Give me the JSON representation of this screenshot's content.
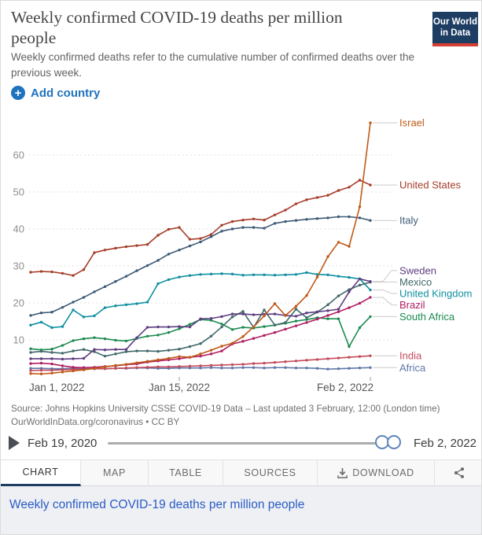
{
  "header": {
    "title": "Weekly confirmed COVID-19 deaths per million people",
    "subtitle": "Weekly confirmed deaths refer to the cumulative number of confirmed deaths over the previous week.",
    "logo": {
      "line1": "Our World",
      "line2": "in Data"
    },
    "add_country_label": "Add country"
  },
  "chart_data": {
    "type": "line",
    "title": "Weekly confirmed COVID-19 deaths per million people",
    "xlabel": "",
    "ylabel": "",
    "ylim": [
      0,
      70
    ],
    "y_ticks": [
      10,
      20,
      30,
      40,
      50,
      60
    ],
    "grid": "horizontal-dashed",
    "legend_position": "right-end-labels",
    "x": [
      "Jan 1",
      "Jan 2",
      "Jan 3",
      "Jan 4",
      "Jan 5",
      "Jan 6",
      "Jan 7",
      "Jan 8",
      "Jan 9",
      "Jan 10",
      "Jan 11",
      "Jan 12",
      "Jan 13",
      "Jan 14",
      "Jan 15",
      "Jan 16",
      "Jan 17",
      "Jan 18",
      "Jan 19",
      "Jan 20",
      "Jan 21",
      "Jan 22",
      "Jan 23",
      "Jan 24",
      "Jan 25",
      "Jan 26",
      "Jan 27",
      "Jan 28",
      "Jan 29",
      "Jan 30",
      "Jan 31",
      "Feb 1",
      "Feb 2"
    ],
    "x_tick_labels": [
      "Jan 1, 2022",
      "Jan 15, 2022",
      "Feb 2, 2022"
    ],
    "series": [
      {
        "name": "Africa",
        "color": "#6077A8",
        "values": [
          2.3,
          2.3,
          2.2,
          2.2,
          2.3,
          2.3,
          2.2,
          2.2,
          2.3,
          2.3,
          2.4,
          2.4,
          2.3,
          2.3,
          2.4,
          2.4,
          2.4,
          2.5,
          2.4,
          2.4,
          2.5,
          2.5,
          2.4,
          2.5,
          2.5,
          2.4,
          2.4,
          2.3,
          2.1,
          2.2,
          2.3,
          2.4,
          2.5
        ]
      },
      {
        "name": "India",
        "color": "#C34A5B",
        "values": [
          1.7,
          1.8,
          1.8,
          1.9,
          2.0,
          2.1,
          2.2,
          2.2,
          2.3,
          2.4,
          2.5,
          2.6,
          2.7,
          2.7,
          2.8,
          2.9,
          3.0,
          3.1,
          3.2,
          3.3,
          3.4,
          3.6,
          3.7,
          3.9,
          4.1,
          4.3,
          4.5,
          4.7,
          4.9,
          5.1,
          5.3,
          5.5,
          5.7
        ]
      },
      {
        "name": "South Africa",
        "color": "#1D8A51",
        "values": [
          7.6,
          7.3,
          7.5,
          8.5,
          9.8,
          10.3,
          10.6,
          10.3,
          9.9,
          9.7,
          10.4,
          11.0,
          11.3,
          12.0,
          13.0,
          14.2,
          15.5,
          15.3,
          14.3,
          12.8,
          13.4,
          13.2,
          13.6,
          14.0,
          14.5,
          15.1,
          15.5,
          16.0,
          15.7,
          15.7,
          8.2,
          13.3,
          16.3
        ]
      },
      {
        "name": "Brazil",
        "color": "#B01E62",
        "values": [
          3.6,
          3.7,
          3.5,
          3.0,
          2.6,
          2.5,
          2.6,
          2.8,
          3.0,
          3.3,
          3.5,
          4.0,
          4.3,
          4.6,
          4.9,
          5.3,
          5.6,
          6.2,
          7.0,
          8.9,
          9.6,
          10.4,
          11.2,
          12.0,
          12.9,
          13.8,
          14.7,
          15.6,
          16.6,
          17.6,
          18.7,
          19.9,
          21.5
        ]
      },
      {
        "name": "United Kingdom",
        "color": "#1090A1",
        "values": [
          14.0,
          14.8,
          13.3,
          13.6,
          18.1,
          16.2,
          16.5,
          18.7,
          19.2,
          19.5,
          19.8,
          20.2,
          25.2,
          26.3,
          27.0,
          27.4,
          27.7,
          27.8,
          27.9,
          27.8,
          27.5,
          27.6,
          27.6,
          27.5,
          27.6,
          27.7,
          28.2,
          27.7,
          27.6,
          27.2,
          26.9,
          26.5,
          23.5
        ]
      },
      {
        "name": "Mexico",
        "color": "#42686B",
        "values": [
          6.6,
          6.9,
          6.6,
          6.4,
          7.0,
          7.4,
          6.8,
          5.6,
          6.2,
          6.8,
          7.0,
          7.0,
          6.9,
          7.2,
          7.5,
          8.2,
          9.0,
          11.0,
          13.5,
          16.2,
          17.7,
          13.4,
          18.1,
          14.0,
          14.7,
          18.3,
          16.0,
          17.5,
          19.5,
          21.9,
          23.6,
          24.8,
          25.6
        ]
      },
      {
        "name": "Sweden",
        "color": "#5E3C80",
        "values": [
          4.9,
          4.9,
          4.9,
          4.8,
          4.9,
          5.0,
          7.4,
          7.3,
          7.4,
          7.4,
          10.6,
          13.4,
          13.5,
          13.5,
          13.6,
          13.5,
          15.7,
          15.8,
          16.3,
          17.0,
          17.0,
          16.8,
          16.9,
          17.0,
          16.6,
          16.4,
          17.3,
          17.6,
          17.9,
          18.3,
          23.0,
          26.5,
          25.8
        ]
      },
      {
        "name": "Italy",
        "color": "#3D5A76",
        "values": [
          16.6,
          17.3,
          17.5,
          18.8,
          20.2,
          21.5,
          23.0,
          24.4,
          25.8,
          27.2,
          28.7,
          30.1,
          31.5,
          33.2,
          34.3,
          35.4,
          36.5,
          37.9,
          39.4,
          40.0,
          40.4,
          40.4,
          40.2,
          41.5,
          42.0,
          42.3,
          42.6,
          42.8,
          43.0,
          43.3,
          43.3,
          43.0,
          42.3
        ]
      },
      {
        "name": "United States",
        "color": "#A63D2A",
        "values": [
          28.3,
          28.5,
          28.4,
          28.0,
          27.4,
          29.0,
          33.6,
          34.3,
          34.8,
          35.2,
          35.5,
          35.8,
          38.3,
          39.9,
          40.4,
          37.2,
          37.4,
          38.5,
          41.0,
          42.0,
          42.4,
          42.7,
          42.4,
          43.8,
          45.1,
          46.8,
          47.9,
          48.5,
          49.1,
          50.4,
          51.3,
          53.2,
          51.9
        ]
      },
      {
        "name": "Israel",
        "color": "#C05917",
        "values": [
          0.9,
          0.8,
          1.0,
          1.3,
          1.6,
          1.9,
          2.3,
          2.7,
          3.1,
          3.4,
          3.8,
          4.2,
          4.6,
          5.0,
          5.5,
          5.3,
          6.2,
          7.2,
          8.3,
          9.1,
          10.9,
          13.5,
          16.5,
          19.8,
          16.6,
          19.1,
          22.0,
          27.0,
          32.5,
          36.4,
          35.3,
          46.0,
          68.7
        ]
      }
    ]
  },
  "source": {
    "line1": "Source: Johns Hopkins University CSSE COVID-19 Data – Last updated 3 February, 12:00 (London time)",
    "line2": "OurWorldInData.org/coronavirus • CC BY"
  },
  "timeline": {
    "start_date": "Feb 19, 2020",
    "end_date": "Feb 2, 2022"
  },
  "tabs": [
    {
      "label": "CHART"
    },
    {
      "label": "MAP"
    },
    {
      "label": "TABLE"
    },
    {
      "label": "SOURCES"
    },
    {
      "label": "DOWNLOAD"
    }
  ],
  "footer": {
    "link_label": "Weekly confirmed COVID-19 deaths per million people"
  }
}
